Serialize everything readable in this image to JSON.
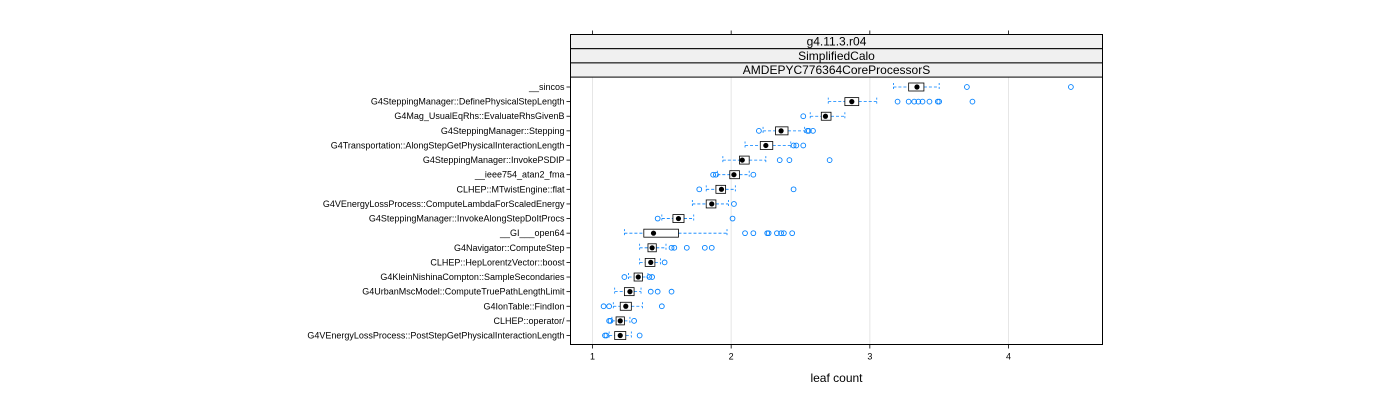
{
  "chart_data": {
    "type": "boxplot",
    "strips": [
      "g4.11.3.r04",
      "SimplifiedCalo",
      "AMDEPYC776364CoreProcessorS"
    ],
    "xlabel": "leaf count",
    "xlim": [
      0.8,
      4.65
    ],
    "xticks": [
      1,
      2,
      3,
      4
    ],
    "grid": true,
    "colors": {
      "box": "#0080ff",
      "whisker": "#0080ff",
      "outlier": "#0080ff",
      "median": "#000000",
      "grid": "#e6e6e6",
      "strip_bg": "#f0f0f0"
    },
    "categories": [
      {
        "label": "__sincos",
        "min": 3.17,
        "q1": 3.28,
        "median": 3.34,
        "q3": 3.39,
        "max": 3.5,
        "outliers": [
          3.7,
          4.45
        ]
      },
      {
        "label": "G4SteppingManager::DefinePhysicalStepLength",
        "min": 2.7,
        "q1": 2.82,
        "median": 2.87,
        "q3": 2.92,
        "max": 3.05,
        "outliers": [
          3.2,
          3.28,
          3.32,
          3.35,
          3.38,
          3.43,
          3.49,
          3.5,
          3.74
        ]
      },
      {
        "label": "G4Mag_UsualEqRhs::EvaluateRhsGivenB",
        "min": 2.57,
        "q1": 2.65,
        "median": 2.68,
        "q3": 2.72,
        "max": 2.82,
        "outliers": [
          2.52
        ]
      },
      {
        "label": "G4SteppingManager::Stepping",
        "min": 2.23,
        "q1": 2.32,
        "median": 2.36,
        "q3": 2.41,
        "max": 2.53,
        "outliers": [
          2.2,
          2.55,
          2.56,
          2.59
        ]
      },
      {
        "label": "G4Transportation::AlongStepGetPhysicalInteractionLength",
        "min": 2.1,
        "q1": 2.21,
        "median": 2.25,
        "q3": 2.3,
        "max": 2.43,
        "outliers": [
          2.45,
          2.47,
          2.52
        ]
      },
      {
        "label": "G4SteppingManager::InvokePSDIP",
        "min": 1.94,
        "q1": 2.06,
        "median": 2.08,
        "q3": 2.13,
        "max": 2.25,
        "outliers": [
          2.35,
          2.42,
          2.71
        ]
      },
      {
        "label": "__ieee754_atan2_fma",
        "min": 1.9,
        "q1": 1.99,
        "median": 2.02,
        "q3": 2.06,
        "max": 2.13,
        "outliers": [
          1.87,
          1.89,
          2.16
        ]
      },
      {
        "label": "CLHEP::MTwistEngine::flat",
        "min": 1.82,
        "q1": 1.89,
        "median": 1.93,
        "q3": 1.96,
        "max": 2.03,
        "outliers": [
          1.77,
          2.45
        ]
      },
      {
        "label": "G4VEnergyLossProcess::ComputeLambdaForScaledEnergy",
        "min": 1.72,
        "q1": 1.82,
        "median": 1.86,
        "q3": 1.89,
        "max": 1.98,
        "outliers": [
          2.02
        ]
      },
      {
        "label": "G4SteppingManager::InvokeAlongStepDoItProcs",
        "min": 1.5,
        "q1": 1.58,
        "median": 1.62,
        "q3": 1.66,
        "max": 1.73,
        "outliers": [
          1.47,
          2.01
        ]
      },
      {
        "label": "__GI___open64",
        "min": 1.23,
        "q1": 1.37,
        "median": 1.44,
        "q3": 1.62,
        "max": 1.97,
        "outliers": [
          2.1,
          2.16,
          2.26,
          2.27,
          2.33,
          2.36,
          2.38,
          2.44
        ]
      },
      {
        "label": "G4Navigator::ComputeStep",
        "min": 1.34,
        "q1": 1.4,
        "median": 1.43,
        "q3": 1.46,
        "max": 1.53,
        "outliers": [
          1.57,
          1.59,
          1.68,
          1.81,
          1.86
        ]
      },
      {
        "label": "CLHEP::HepLorentzVector::boost",
        "min": 1.34,
        "q1": 1.38,
        "median": 1.42,
        "q3": 1.45,
        "max": 1.49,
        "outliers": [
          1.52
        ]
      },
      {
        "label": "G4KleinNishinaCompton::SampleSecondaries",
        "min": 1.26,
        "q1": 1.3,
        "median": 1.33,
        "q3": 1.36,
        "max": 1.4,
        "outliers": [
          1.23,
          1.41,
          1.43
        ]
      },
      {
        "label": "G4UrbanMscModel::ComputeTruePathLengthLimit",
        "min": 1.16,
        "q1": 1.23,
        "median": 1.27,
        "q3": 1.3,
        "max": 1.35,
        "outliers": [
          1.42,
          1.47,
          1.57
        ]
      },
      {
        "label": "G4IonTable::FindIon",
        "min": 1.15,
        "q1": 1.2,
        "median": 1.24,
        "q3": 1.28,
        "max": 1.36,
        "outliers": [
          1.08,
          1.12,
          1.5
        ]
      },
      {
        "label": "CLHEP::operator/",
        "min": 1.14,
        "q1": 1.17,
        "median": 1.2,
        "q3": 1.23,
        "max": 1.27,
        "outliers": [
          1.12,
          1.13,
          1.3
        ]
      },
      {
        "label": "G4VEnergyLossProcess::PostStepGetPhysicalInteractionLength",
        "min": 1.12,
        "q1": 1.16,
        "median": 1.2,
        "q3": 1.24,
        "max": 1.28,
        "outliers": [
          1.09,
          1.1,
          1.34
        ]
      }
    ]
  }
}
